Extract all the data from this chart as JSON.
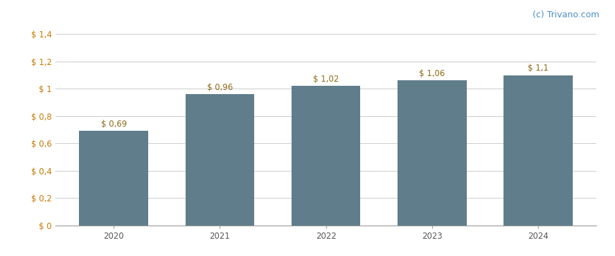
{
  "categories": [
    "2020",
    "2021",
    "2022",
    "2023",
    "2024"
  ],
  "values": [
    0.69,
    0.96,
    1.02,
    1.06,
    1.1
  ],
  "labels": [
    "$ 0,69",
    "$ 0,96",
    "$ 1,02",
    "$ 1,06",
    "$ 1,1"
  ],
  "bar_color": "#607d8b",
  "yticks": [
    0,
    0.2,
    0.4,
    0.6,
    0.8,
    1.0,
    1.2,
    1.4
  ],
  "ytick_labels": [
    "$ 0",
    "$ 0,2",
    "$ 0,4",
    "$ 0,6",
    "$ 0,8",
    "$ 1",
    "$ 1,2",
    "$ 1,4"
  ],
  "ylim": [
    0,
    1.5
  ],
  "background_color": "#ffffff",
  "grid_color": "#cccccc",
  "watermark": "(c) Trivano.com",
  "watermark_color": "#4a90c4",
  "label_color": "#8B6914",
  "tick_color_dollar": "#c87800",
  "tick_color_num": "#4a90c4",
  "label_fontsize": 8.5,
  "tick_fontsize": 8.5,
  "watermark_fontsize": 9
}
